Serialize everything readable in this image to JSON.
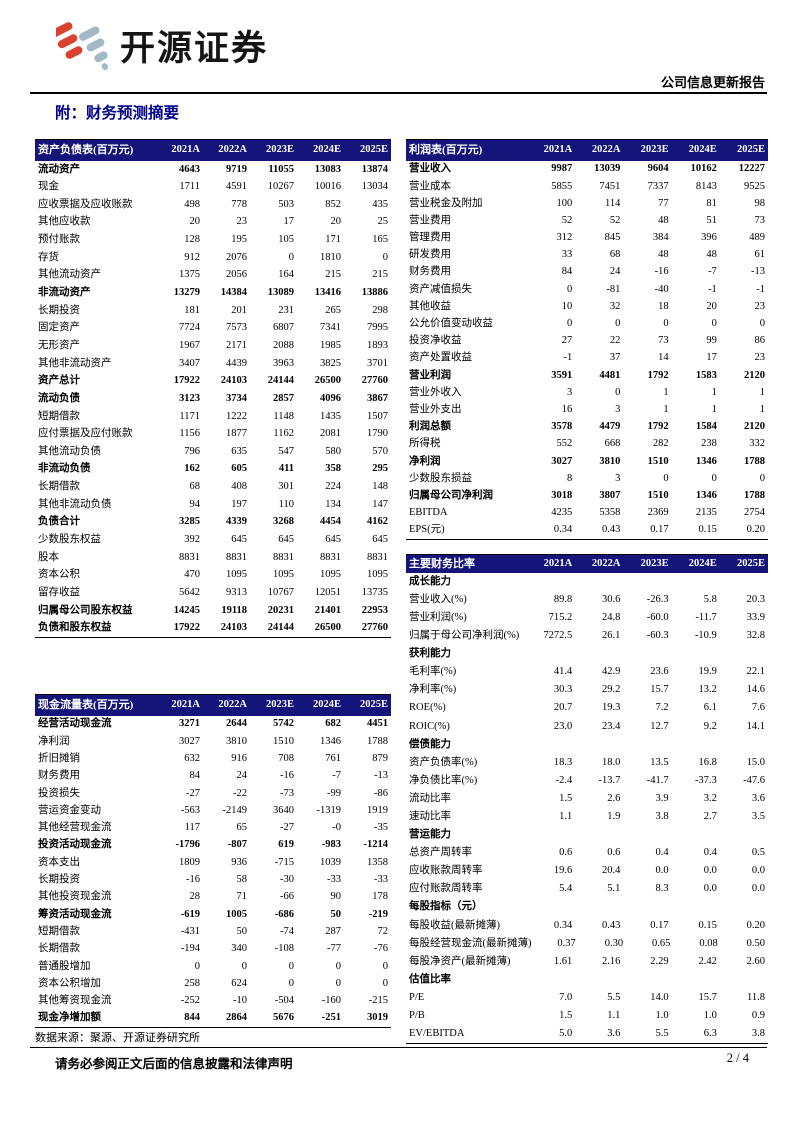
{
  "header": {
    "brand": "开源证券",
    "report_type": "公司信息更新报告",
    "section_title": "附：财务预测摘要"
  },
  "colors": {
    "table_header_navy": "#14147A",
    "section_title_blue": "#00008C",
    "logo_red": "#D9432E",
    "logo_blue_grey": "#A3BAC6"
  },
  "tables": {
    "balance_sheet": {
      "title": "资产负债表(百万元)",
      "years": [
        "2021A",
        "2022A",
        "2023E",
        "2024E",
        "2025E"
      ],
      "rows": [
        {
          "label": "流动资产",
          "bold": true,
          "values": [
            "4643",
            "9719",
            "11055",
            "13083",
            "13874"
          ]
        },
        {
          "label": "现金",
          "bold": false,
          "values": [
            "1711",
            "4591",
            "10267",
            "10016",
            "13034"
          ]
        },
        {
          "label": "应收票据及应收账款",
          "bold": false,
          "values": [
            "498",
            "778",
            "503",
            "852",
            "435"
          ]
        },
        {
          "label": "其他应收款",
          "bold": false,
          "values": [
            "20",
            "23",
            "17",
            "20",
            "25"
          ]
        },
        {
          "label": "预付账款",
          "bold": false,
          "values": [
            "128",
            "195",
            "105",
            "171",
            "165"
          ]
        },
        {
          "label": "存货",
          "bold": false,
          "values": [
            "912",
            "2076",
            "0",
            "1810",
            "0"
          ]
        },
        {
          "label": "其他流动资产",
          "bold": false,
          "values": [
            "1375",
            "2056",
            "164",
            "215",
            "215"
          ]
        },
        {
          "label": "非流动资产",
          "bold": true,
          "values": [
            "13279",
            "14384",
            "13089",
            "13416",
            "13886"
          ]
        },
        {
          "label": "长期投资",
          "bold": false,
          "values": [
            "181",
            "201",
            "231",
            "265",
            "298"
          ]
        },
        {
          "label": "固定资产",
          "bold": false,
          "values": [
            "7724",
            "7573",
            "6807",
            "7341",
            "7995"
          ]
        },
        {
          "label": "无形资产",
          "bold": false,
          "values": [
            "1967",
            "2171",
            "2088",
            "1985",
            "1893"
          ]
        },
        {
          "label": "其他非流动资产",
          "bold": false,
          "values": [
            "3407",
            "4439",
            "3963",
            "3825",
            "3701"
          ]
        },
        {
          "label": "资产总计",
          "bold": true,
          "values": [
            "17922",
            "24103",
            "24144",
            "26500",
            "27760"
          ]
        },
        {
          "label": "流动负债",
          "bold": true,
          "values": [
            "3123",
            "3734",
            "2857",
            "4096",
            "3867"
          ]
        },
        {
          "label": "短期借款",
          "bold": false,
          "values": [
            "1171",
            "1222",
            "1148",
            "1435",
            "1507"
          ]
        },
        {
          "label": "应付票据及应付账款",
          "bold": false,
          "values": [
            "1156",
            "1877",
            "1162",
            "2081",
            "1790"
          ]
        },
        {
          "label": "其他流动负债",
          "bold": false,
          "values": [
            "796",
            "635",
            "547",
            "580",
            "570"
          ]
        },
        {
          "label": "非流动负债",
          "bold": true,
          "values": [
            "162",
            "605",
            "411",
            "358",
            "295"
          ]
        },
        {
          "label": "长期借款",
          "bold": false,
          "values": [
            "68",
            "408",
            "301",
            "224",
            "148"
          ]
        },
        {
          "label": "其他非流动负债",
          "bold": false,
          "values": [
            "94",
            "197",
            "110",
            "134",
            "147"
          ]
        },
        {
          "label": "负债合计",
          "bold": true,
          "values": [
            "3285",
            "4339",
            "3268",
            "4454",
            "4162"
          ]
        },
        {
          "label": "少数股东权益",
          "bold": false,
          "values": [
            "392",
            "645",
            "645",
            "645",
            "645"
          ]
        },
        {
          "label": "股本",
          "bold": false,
          "values": [
            "8831",
            "8831",
            "8831",
            "8831",
            "8831"
          ]
        },
        {
          "label": "资本公积",
          "bold": false,
          "values": [
            "470",
            "1095",
            "1095",
            "1095",
            "1095"
          ]
        },
        {
          "label": "留存收益",
          "bold": false,
          "values": [
            "5642",
            "9313",
            "10767",
            "12051",
            "13735"
          ]
        },
        {
          "label": "归属母公司股东权益",
          "bold": true,
          "values": [
            "14245",
            "19118",
            "20231",
            "21401",
            "22953"
          ]
        },
        {
          "label": "负债和股东权益",
          "bold": true,
          "values": [
            "17922",
            "24103",
            "24144",
            "26500",
            "27760"
          ]
        }
      ]
    },
    "income": {
      "title": "利润表(百万元)",
      "years": [
        "2021A",
        "2022A",
        "2023E",
        "2024E",
        "2025E"
      ],
      "rows": [
        {
          "label": "营业收入",
          "bold": true,
          "values": [
            "9987",
            "13039",
            "9604",
            "10162",
            "12227"
          ]
        },
        {
          "label": "营业成本",
          "bold": false,
          "values": [
            "5855",
            "7451",
            "7337",
            "8143",
            "9525"
          ]
        },
        {
          "label": "营业税金及附加",
          "bold": false,
          "values": [
            "100",
            "114",
            "77",
            "81",
            "98"
          ]
        },
        {
          "label": "营业费用",
          "bold": false,
          "values": [
            "52",
            "52",
            "48",
            "51",
            "73"
          ]
        },
        {
          "label": "管理费用",
          "bold": false,
          "values": [
            "312",
            "845",
            "384",
            "396",
            "489"
          ]
        },
        {
          "label": "研发费用",
          "bold": false,
          "values": [
            "33",
            "68",
            "48",
            "48",
            "61"
          ]
        },
        {
          "label": "财务费用",
          "bold": false,
          "values": [
            "84",
            "24",
            "-16",
            "-7",
            "-13"
          ]
        },
        {
          "label": "资产减值损失",
          "bold": false,
          "values": [
            "0",
            "-81",
            "-40",
            "-1",
            "-1"
          ]
        },
        {
          "label": "其他收益",
          "bold": false,
          "values": [
            "10",
            "32",
            "18",
            "20",
            "23"
          ]
        },
        {
          "label": "公允价值变动收益",
          "bold": false,
          "values": [
            "0",
            "0",
            "0",
            "0",
            "0"
          ]
        },
        {
          "label": "投资净收益",
          "bold": false,
          "values": [
            "27",
            "22",
            "73",
            "99",
            "86"
          ]
        },
        {
          "label": "资产处置收益",
          "bold": false,
          "values": [
            "-1",
            "37",
            "14",
            "17",
            "23"
          ]
        },
        {
          "label": "营业利润",
          "bold": true,
          "values": [
            "3591",
            "4481",
            "1792",
            "1583",
            "2120"
          ]
        },
        {
          "label": "营业外收入",
          "bold": false,
          "values": [
            "3",
            "0",
            "1",
            "1",
            "1"
          ]
        },
        {
          "label": "营业外支出",
          "bold": false,
          "values": [
            "16",
            "3",
            "1",
            "1",
            "1"
          ]
        },
        {
          "label": "利润总额",
          "bold": true,
          "values": [
            "3578",
            "4479",
            "1792",
            "1584",
            "2120"
          ]
        },
        {
          "label": "所得税",
          "bold": false,
          "values": [
            "552",
            "668",
            "282",
            "238",
            "332"
          ]
        },
        {
          "label": "净利润",
          "bold": true,
          "values": [
            "3027",
            "3810",
            "1510",
            "1346",
            "1788"
          ]
        },
        {
          "label": "少数股东损益",
          "bold": false,
          "values": [
            "8",
            "3",
            "0",
            "0",
            "0"
          ]
        },
        {
          "label": "归属母公司净利润",
          "bold": true,
          "values": [
            "3018",
            "3807",
            "1510",
            "1346",
            "1788"
          ]
        },
        {
          "label": "EBITDA",
          "bold": false,
          "values": [
            "4235",
            "5358",
            "2369",
            "2135",
            "2754"
          ]
        },
        {
          "label": "EPS(元)",
          "bold": false,
          "values": [
            "0.34",
            "0.43",
            "0.17",
            "0.15",
            "0.20"
          ]
        }
      ]
    },
    "cashflow": {
      "title": "现金流量表(百万元)",
      "years": [
        "2021A",
        "2022A",
        "2023E",
        "2024E",
        "2025E"
      ],
      "rows": [
        {
          "label": "经营活动现金流",
          "bold": true,
          "values": [
            "3271",
            "2644",
            "5742",
            "682",
            "4451"
          ]
        },
        {
          "label": "净利润",
          "bold": false,
          "values": [
            "3027",
            "3810",
            "1510",
            "1346",
            "1788"
          ]
        },
        {
          "label": "折旧摊销",
          "bold": false,
          "values": [
            "632",
            "916",
            "708",
            "761",
            "879"
          ]
        },
        {
          "label": "财务费用",
          "bold": false,
          "values": [
            "84",
            "24",
            "-16",
            "-7",
            "-13"
          ]
        },
        {
          "label": "投资损失",
          "bold": false,
          "values": [
            "-27",
            "-22",
            "-73",
            "-99",
            "-86"
          ]
        },
        {
          "label": "营运资金变动",
          "bold": false,
          "values": [
            "-563",
            "-2149",
            "3640",
            "-1319",
            "1919"
          ]
        },
        {
          "label": "其他经营现金流",
          "bold": false,
          "values": [
            "117",
            "65",
            "-27",
            "-0",
            "-35"
          ]
        },
        {
          "label": "投资活动现金流",
          "bold": true,
          "values": [
            "-1796",
            "-807",
            "619",
            "-983",
            "-1214"
          ]
        },
        {
          "label": "资本支出",
          "bold": false,
          "values": [
            "1809",
            "936",
            "-715",
            "1039",
            "1358"
          ]
        },
        {
          "label": "长期投资",
          "bold": false,
          "values": [
            "-16",
            "58",
            "-30",
            "-33",
            "-33"
          ]
        },
        {
          "label": "其他投资现金流",
          "bold": false,
          "values": [
            "28",
            "71",
            "-66",
            "90",
            "178"
          ]
        },
        {
          "label": "筹资活动现金流",
          "bold": true,
          "values": [
            "-619",
            "1005",
            "-686",
            "50",
            "-219"
          ]
        },
        {
          "label": "短期借款",
          "bold": false,
          "values": [
            "-431",
            "50",
            "-74",
            "287",
            "72"
          ]
        },
        {
          "label": "长期借款",
          "bold": false,
          "values": [
            "-194",
            "340",
            "-108",
            "-77",
            "-76"
          ]
        },
        {
          "label": "普通股增加",
          "bold": false,
          "values": [
            "0",
            "0",
            "0",
            "0",
            "0"
          ]
        },
        {
          "label": "资本公积增加",
          "bold": false,
          "values": [
            "258",
            "624",
            "0",
            "0",
            "0"
          ]
        },
        {
          "label": "其他筹资现金流",
          "bold": false,
          "values": [
            "-252",
            "-10",
            "-504",
            "-160",
            "-215"
          ]
        },
        {
          "label": "现金净增加额",
          "bold": true,
          "values": [
            "844",
            "2864",
            "5676",
            "-251",
            "3019"
          ]
        }
      ]
    },
    "ratios": {
      "title": "主要财务比率",
      "years": [
        "2021A",
        "2022A",
        "2023E",
        "2024E",
        "2025E"
      ],
      "rows": [
        {
          "label": "成长能力",
          "bold": true,
          "values": []
        },
        {
          "label": "营业收入(%)",
          "bold": false,
          "values": [
            "89.8",
            "30.6",
            "-26.3",
            "5.8",
            "20.3"
          ]
        },
        {
          "label": "营业利润(%)",
          "bold": false,
          "values": [
            "715.2",
            "24.8",
            "-60.0",
            "-11.7",
            "33.9"
          ]
        },
        {
          "label": "归属于母公司净利润(%)",
          "bold": false,
          "values": [
            "7272.5",
            "26.1",
            "-60.3",
            "-10.9",
            "32.8"
          ]
        },
        {
          "label": "获利能力",
          "bold": true,
          "values": []
        },
        {
          "label": "毛利率(%)",
          "bold": false,
          "values": [
            "41.4",
            "42.9",
            "23.6",
            "19.9",
            "22.1"
          ]
        },
        {
          "label": "净利率(%)",
          "bold": false,
          "values": [
            "30.3",
            "29.2",
            "15.7",
            "13.2",
            "14.6"
          ]
        },
        {
          "label": "ROE(%)",
          "bold": false,
          "values": [
            "20.7",
            "19.3",
            "7.2",
            "6.1",
            "7.6"
          ]
        },
        {
          "label": "ROIC(%)",
          "bold": false,
          "values": [
            "23.0",
            "23.4",
            "12.7",
            "9.2",
            "14.1"
          ]
        },
        {
          "label": "偿债能力",
          "bold": true,
          "values": []
        },
        {
          "label": "资产负债率(%)",
          "bold": false,
          "values": [
            "18.3",
            "18.0",
            "13.5",
            "16.8",
            "15.0"
          ]
        },
        {
          "label": "净负债比率(%)",
          "bold": false,
          "values": [
            "-2.4",
            "-13.7",
            "-41.7",
            "-37.3",
            "-47.6"
          ]
        },
        {
          "label": "流动比率",
          "bold": false,
          "values": [
            "1.5",
            "2.6",
            "3.9",
            "3.2",
            "3.6"
          ]
        },
        {
          "label": "速动比率",
          "bold": false,
          "values": [
            "1.1",
            "1.9",
            "3.8",
            "2.7",
            "3.5"
          ]
        },
        {
          "label": "营运能力",
          "bold": true,
          "values": []
        },
        {
          "label": "总资产周转率",
          "bold": false,
          "values": [
            "0.6",
            "0.6",
            "0.4",
            "0.4",
            "0.5"
          ]
        },
        {
          "label": "应收账款周转率",
          "bold": false,
          "values": [
            "19.6",
            "20.4",
            "0.0",
            "0.0",
            "0.0"
          ]
        },
        {
          "label": "应付账款周转率",
          "bold": false,
          "values": [
            "5.4",
            "5.1",
            "8.3",
            "0.0",
            "0.0"
          ]
        },
        {
          "label": "每股指标（元）",
          "bold": true,
          "values": []
        },
        {
          "label": "每股收益(最新摊薄)",
          "bold": false,
          "values": [
            "0.34",
            "0.43",
            "0.17",
            "0.15",
            "0.20"
          ]
        },
        {
          "label": "每股经营现金流(最新摊薄)",
          "bold": false,
          "values": [
            "0.37",
            "0.30",
            "0.65",
            "0.08",
            "0.50"
          ]
        },
        {
          "label": "每股净资产(最新摊薄)",
          "bold": false,
          "values": [
            "1.61",
            "2.16",
            "2.29",
            "2.42",
            "2.60"
          ]
        },
        {
          "label": "估值比率",
          "bold": true,
          "values": []
        },
        {
          "label": "P/E",
          "bold": false,
          "values": [
            "7.0",
            "5.5",
            "14.0",
            "15.7",
            "11.8"
          ]
        },
        {
          "label": "P/B",
          "bold": false,
          "values": [
            "1.5",
            "1.1",
            "1.0",
            "1.0",
            "0.9"
          ]
        },
        {
          "label": "EV/EBITDA",
          "bold": false,
          "values": [
            "5.0",
            "3.6",
            "5.5",
            "6.3",
            "3.8"
          ]
        }
      ]
    }
  },
  "source_note": "数据来源：聚源、开源证券研究所",
  "footer": {
    "disclaimer": "请务必参阅正文后面的信息披露和法律声明",
    "page": "2 / 4"
  }
}
